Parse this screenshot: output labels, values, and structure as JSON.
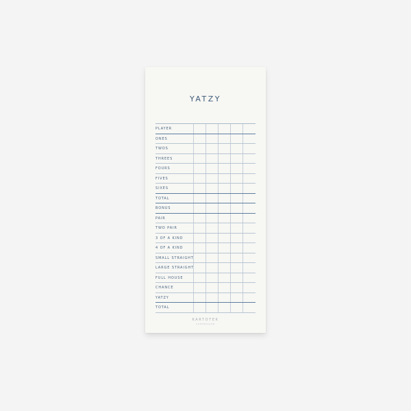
{
  "title": "YATZY",
  "player_columns": 5,
  "rows": [
    {
      "label": "PLAYER",
      "thick": true
    },
    {
      "label": "ONES",
      "thick": false
    },
    {
      "label": "TWOS",
      "thick": false
    },
    {
      "label": "THREES",
      "thick": false
    },
    {
      "label": "FOURS",
      "thick": false
    },
    {
      "label": "FIVES",
      "thick": false
    },
    {
      "label": "SIXES",
      "thick": true
    },
    {
      "label": "TOTAL",
      "thick": true
    },
    {
      "label": "BONUS",
      "thick": true
    },
    {
      "label": "PAIR",
      "thick": false
    },
    {
      "label": "TWO PAIR",
      "thick": false
    },
    {
      "label": "3 OF A KIND",
      "thick": false
    },
    {
      "label": "4 OF A KIND",
      "thick": false
    },
    {
      "label": "SMALL STRAIGHT",
      "thick": false
    },
    {
      "label": "LARGE STRAIGHT",
      "thick": false
    },
    {
      "label": "FULL HOUSE",
      "thick": false
    },
    {
      "label": "CHANCE",
      "thick": false
    },
    {
      "label": "YATZY",
      "thick": true
    },
    {
      "label": "TOTAL",
      "thick": false
    }
  ],
  "brand": "KARTOTEK",
  "brand_sub": "COPENHAGEN",
  "colors": {
    "ink": "#3e5b78",
    "lines": "#b8c6d2",
    "paper": "#f7f7f4"
  }
}
